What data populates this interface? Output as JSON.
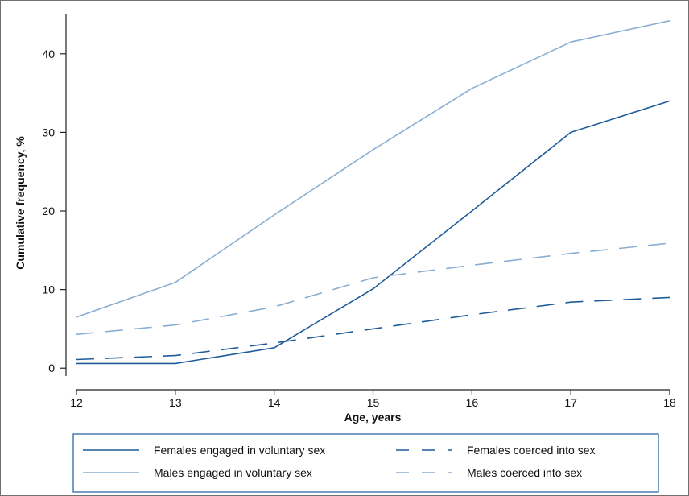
{
  "chart_data": {
    "type": "line",
    "title": "",
    "xlabel": "Age, years",
    "ylabel": "Cumulative frequency, %",
    "x": [
      12,
      13,
      14,
      15,
      16,
      17,
      18
    ],
    "xlim": [
      12,
      18
    ],
    "ylim": [
      -1,
      45
    ],
    "x_ticks": [
      12,
      13,
      14,
      15,
      16,
      17,
      18
    ],
    "y_ticks": [
      0,
      10,
      20,
      30,
      40
    ],
    "grid": false,
    "legend_position": "bottom",
    "series": [
      {
        "name": "Females engaged in voluntary sex",
        "values": [
          0.6,
          0.6,
          2.6,
          10.1,
          20.0,
          30.0,
          34.0
        ],
        "color": "#1f5c99",
        "style": "solid"
      },
      {
        "name": "Males engaged in voluntary sex",
        "values": [
          6.5,
          10.9,
          19.5,
          27.8,
          35.6,
          41.5,
          44.2
        ],
        "color": "#8aaed1",
        "style": "solid"
      },
      {
        "name": "Females coerced into sex",
        "values": [
          1.1,
          1.6,
          3.2,
          5.0,
          6.8,
          8.4,
          9.0
        ],
        "color": "#1f5c99",
        "style": "dashed"
      },
      {
        "name": "Males coerced into sex",
        "values": [
          4.3,
          5.5,
          7.8,
          11.5,
          13.1,
          14.6,
          15.9
        ],
        "color": "#8aaed1",
        "style": "dashed"
      }
    ]
  }
}
